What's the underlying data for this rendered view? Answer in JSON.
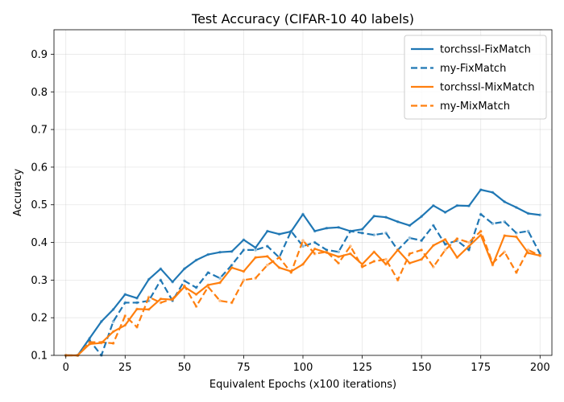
{
  "chart_data": {
    "type": "line",
    "title": "Test Accuracy (CIFAR-10 40 labels)",
    "xlabel": "Equivalent Epochs (x100 iterations)",
    "ylabel": "Accuracy",
    "xlim": [
      -5,
      205
    ],
    "ylim": [
      0.1,
      0.965
    ],
    "xticks": [
      0,
      25,
      50,
      75,
      100,
      125,
      150,
      175,
      200
    ],
    "yticks": [
      0.1,
      0.2,
      0.3,
      0.4,
      0.5,
      0.6,
      0.7,
      0.8,
      0.9
    ],
    "grid": true,
    "legend_position": "top-right",
    "x": [
      0,
      5,
      10,
      15,
      20,
      25,
      30,
      35,
      40,
      45,
      50,
      55,
      60,
      65,
      70,
      75,
      80,
      85,
      90,
      95,
      100,
      105,
      110,
      115,
      120,
      125,
      130,
      135,
      140,
      145,
      150,
      155,
      160,
      165,
      170,
      175,
      180,
      185,
      190,
      195,
      200
    ],
    "series": [
      {
        "name": "torchssl-FixMatch",
        "color": "#1f77b4",
        "dash": "solid",
        "values": [
          0.1,
          0.1,
          0.145,
          0.19,
          0.222,
          0.262,
          0.252,
          0.302,
          0.33,
          0.295,
          0.33,
          0.353,
          0.368,
          0.374,
          0.376,
          0.407,
          0.386,
          0.43,
          0.422,
          0.429,
          0.475,
          0.43,
          0.438,
          0.44,
          0.43,
          0.435,
          0.47,
          0.467,
          0.455,
          0.445,
          0.469,
          0.498,
          0.48,
          0.498,
          0.497,
          0.54,
          0.533,
          0.508,
          0.493,
          0.477,
          0.473
        ]
      },
      {
        "name": "my-FixMatch",
        "color": "#1f77b4",
        "dash": "dashed",
        "values": [
          0.1,
          0.1,
          0.14,
          0.1,
          0.19,
          0.24,
          0.24,
          0.245,
          0.3,
          0.245,
          0.298,
          0.28,
          0.32,
          0.305,
          0.34,
          0.38,
          0.38,
          0.39,
          0.36,
          0.43,
          0.39,
          0.4,
          0.38,
          0.375,
          0.43,
          0.425,
          0.42,
          0.425,
          0.38,
          0.412,
          0.405,
          0.445,
          0.395,
          0.405,
          0.38,
          0.475,
          0.45,
          0.455,
          0.425,
          0.43,
          0.37
        ]
      },
      {
        "name": "torchssl-MixMatch",
        "color": "#ff7f0e",
        "dash": "solid",
        "values": [
          0.1,
          0.1,
          0.13,
          0.133,
          0.163,
          0.18,
          0.223,
          0.222,
          0.25,
          0.248,
          0.282,
          0.262,
          0.287,
          0.293,
          0.333,
          0.323,
          0.36,
          0.363,
          0.333,
          0.323,
          0.342,
          0.383,
          0.373,
          0.362,
          0.37,
          0.342,
          0.375,
          0.342,
          0.38,
          0.345,
          0.355,
          0.392,
          0.408,
          0.36,
          0.39,
          0.42,
          0.34,
          0.418,
          0.415,
          0.372,
          0.365
        ]
      },
      {
        "name": "my-MixMatch",
        "color": "#ff7f0e",
        "dash": "dashed",
        "values": [
          0.1,
          0.1,
          0.135,
          0.135,
          0.132,
          0.205,
          0.175,
          0.255,
          0.24,
          0.25,
          0.285,
          0.23,
          0.282,
          0.245,
          0.24,
          0.3,
          0.305,
          0.34,
          0.36,
          0.32,
          0.405,
          0.37,
          0.375,
          0.345,
          0.39,
          0.335,
          0.35,
          0.355,
          0.3,
          0.37,
          0.38,
          0.335,
          0.38,
          0.41,
          0.4,
          0.43,
          0.345,
          0.375,
          0.32,
          0.38,
          0.365
        ]
      }
    ]
  }
}
